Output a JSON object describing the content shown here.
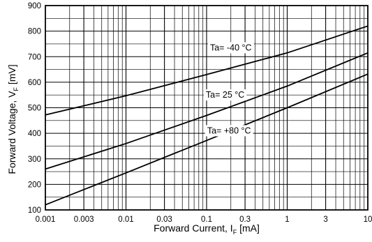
{
  "chart_data": {
    "type": "line",
    "xscale": "log",
    "xlim": [
      0.001,
      10
    ],
    "ylim": [
      100,
      900
    ],
    "grid": true,
    "xlabel": {
      "main": "Forward Current, I",
      "sub": "F",
      "unit": " [mA]"
    },
    "ylabel": {
      "main": "Forward Voltage, V",
      "sub": "F",
      "unit": " [mV]"
    },
    "x_ticks": [
      {
        "value": 0.001,
        "label": "0.001"
      },
      {
        "value": 0.003,
        "label": "0.003"
      },
      {
        "value": 0.01,
        "label": "0.01"
      },
      {
        "value": 0.03,
        "label": "0.03"
      },
      {
        "value": 0.1,
        "label": "0.1"
      },
      {
        "value": 0.3,
        "label": "0.3"
      },
      {
        "value": 1,
        "label": "1"
      },
      {
        "value": 3,
        "label": "3"
      },
      {
        "value": 10,
        "label": "10"
      }
    ],
    "y_ticks": [
      {
        "value": 100,
        "label": "100"
      },
      {
        "value": 200,
        "label": "200"
      },
      {
        "value": 300,
        "label": "300"
      },
      {
        "value": 400,
        "label": "400"
      },
      {
        "value": 500,
        "label": "500"
      },
      {
        "value": 600,
        "label": "600"
      },
      {
        "value": 700,
        "label": "700"
      },
      {
        "value": 800,
        "label": "800"
      },
      {
        "value": 900,
        "label": "900"
      }
    ],
    "series": [
      {
        "name": "Ta= -40 °C",
        "x": [
          0.001,
          0.01,
          0.1,
          1,
          10
        ],
        "y": [
          472,
          547,
          630,
          715,
          820
        ]
      },
      {
        "name": "Ta= 25 °C",
        "x": [
          0.001,
          0.01,
          0.1,
          1,
          10
        ],
        "y": [
          260,
          360,
          470,
          585,
          715
        ]
      },
      {
        "name": "Ta= +80 °C",
        "x": [
          0.001,
          0.01,
          0.1,
          1,
          10
        ],
        "y": [
          120,
          245,
          372,
          500,
          632
        ]
      }
    ],
    "annotations": [
      {
        "text": "Ta= -40 °C",
        "x": 0.2,
        "y": 735
      },
      {
        "text": "Ta= 25 °C",
        "x": 0.17,
        "y": 550
      },
      {
        "text": "Ta= +80 °C",
        "x": 0.19,
        "y": 410
      }
    ]
  }
}
